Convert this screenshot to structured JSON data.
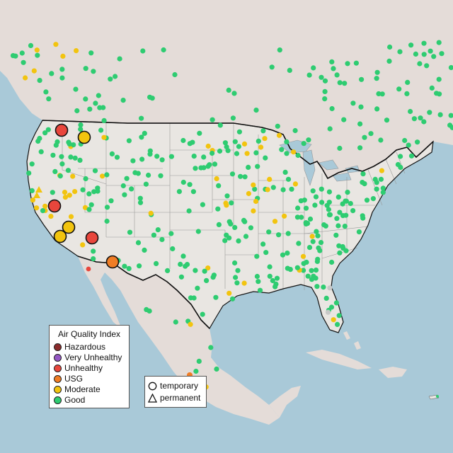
{
  "colors": {
    "ocean": "#a9c9d8",
    "land_us": "#e9e6e2",
    "land_other": "#e4dcd8",
    "state_border": "#9a9a9a",
    "country_border": "#111111"
  },
  "legend": {
    "title": "Air Quality Index",
    "items": [
      {
        "label": "Hazardous",
        "color": "#8b2c2c"
      },
      {
        "label": "Very Unhealthy",
        "color": "#9457c4"
      },
      {
        "label": "Unhealthy",
        "color": "#e8463c"
      },
      {
        "label": "USG",
        "color": "#f07d25"
      },
      {
        "label": "Moderate",
        "color": "#f2c40f"
      },
      {
        "label": "Good",
        "color": "#2ecc71"
      }
    ]
  },
  "shape_legend": {
    "items": [
      {
        "label": "temporary",
        "shape": "circle-outline-icon"
      },
      {
        "label": "permanent",
        "shape": "triangle-outline-icon"
      }
    ]
  },
  "categories": {
    "good": "#2ecc71",
    "moderate": "#f2c40f",
    "usg": "#f07d25",
    "unhealthy": "#e8463c",
    "nodata": "#c8c8c8"
  }
}
